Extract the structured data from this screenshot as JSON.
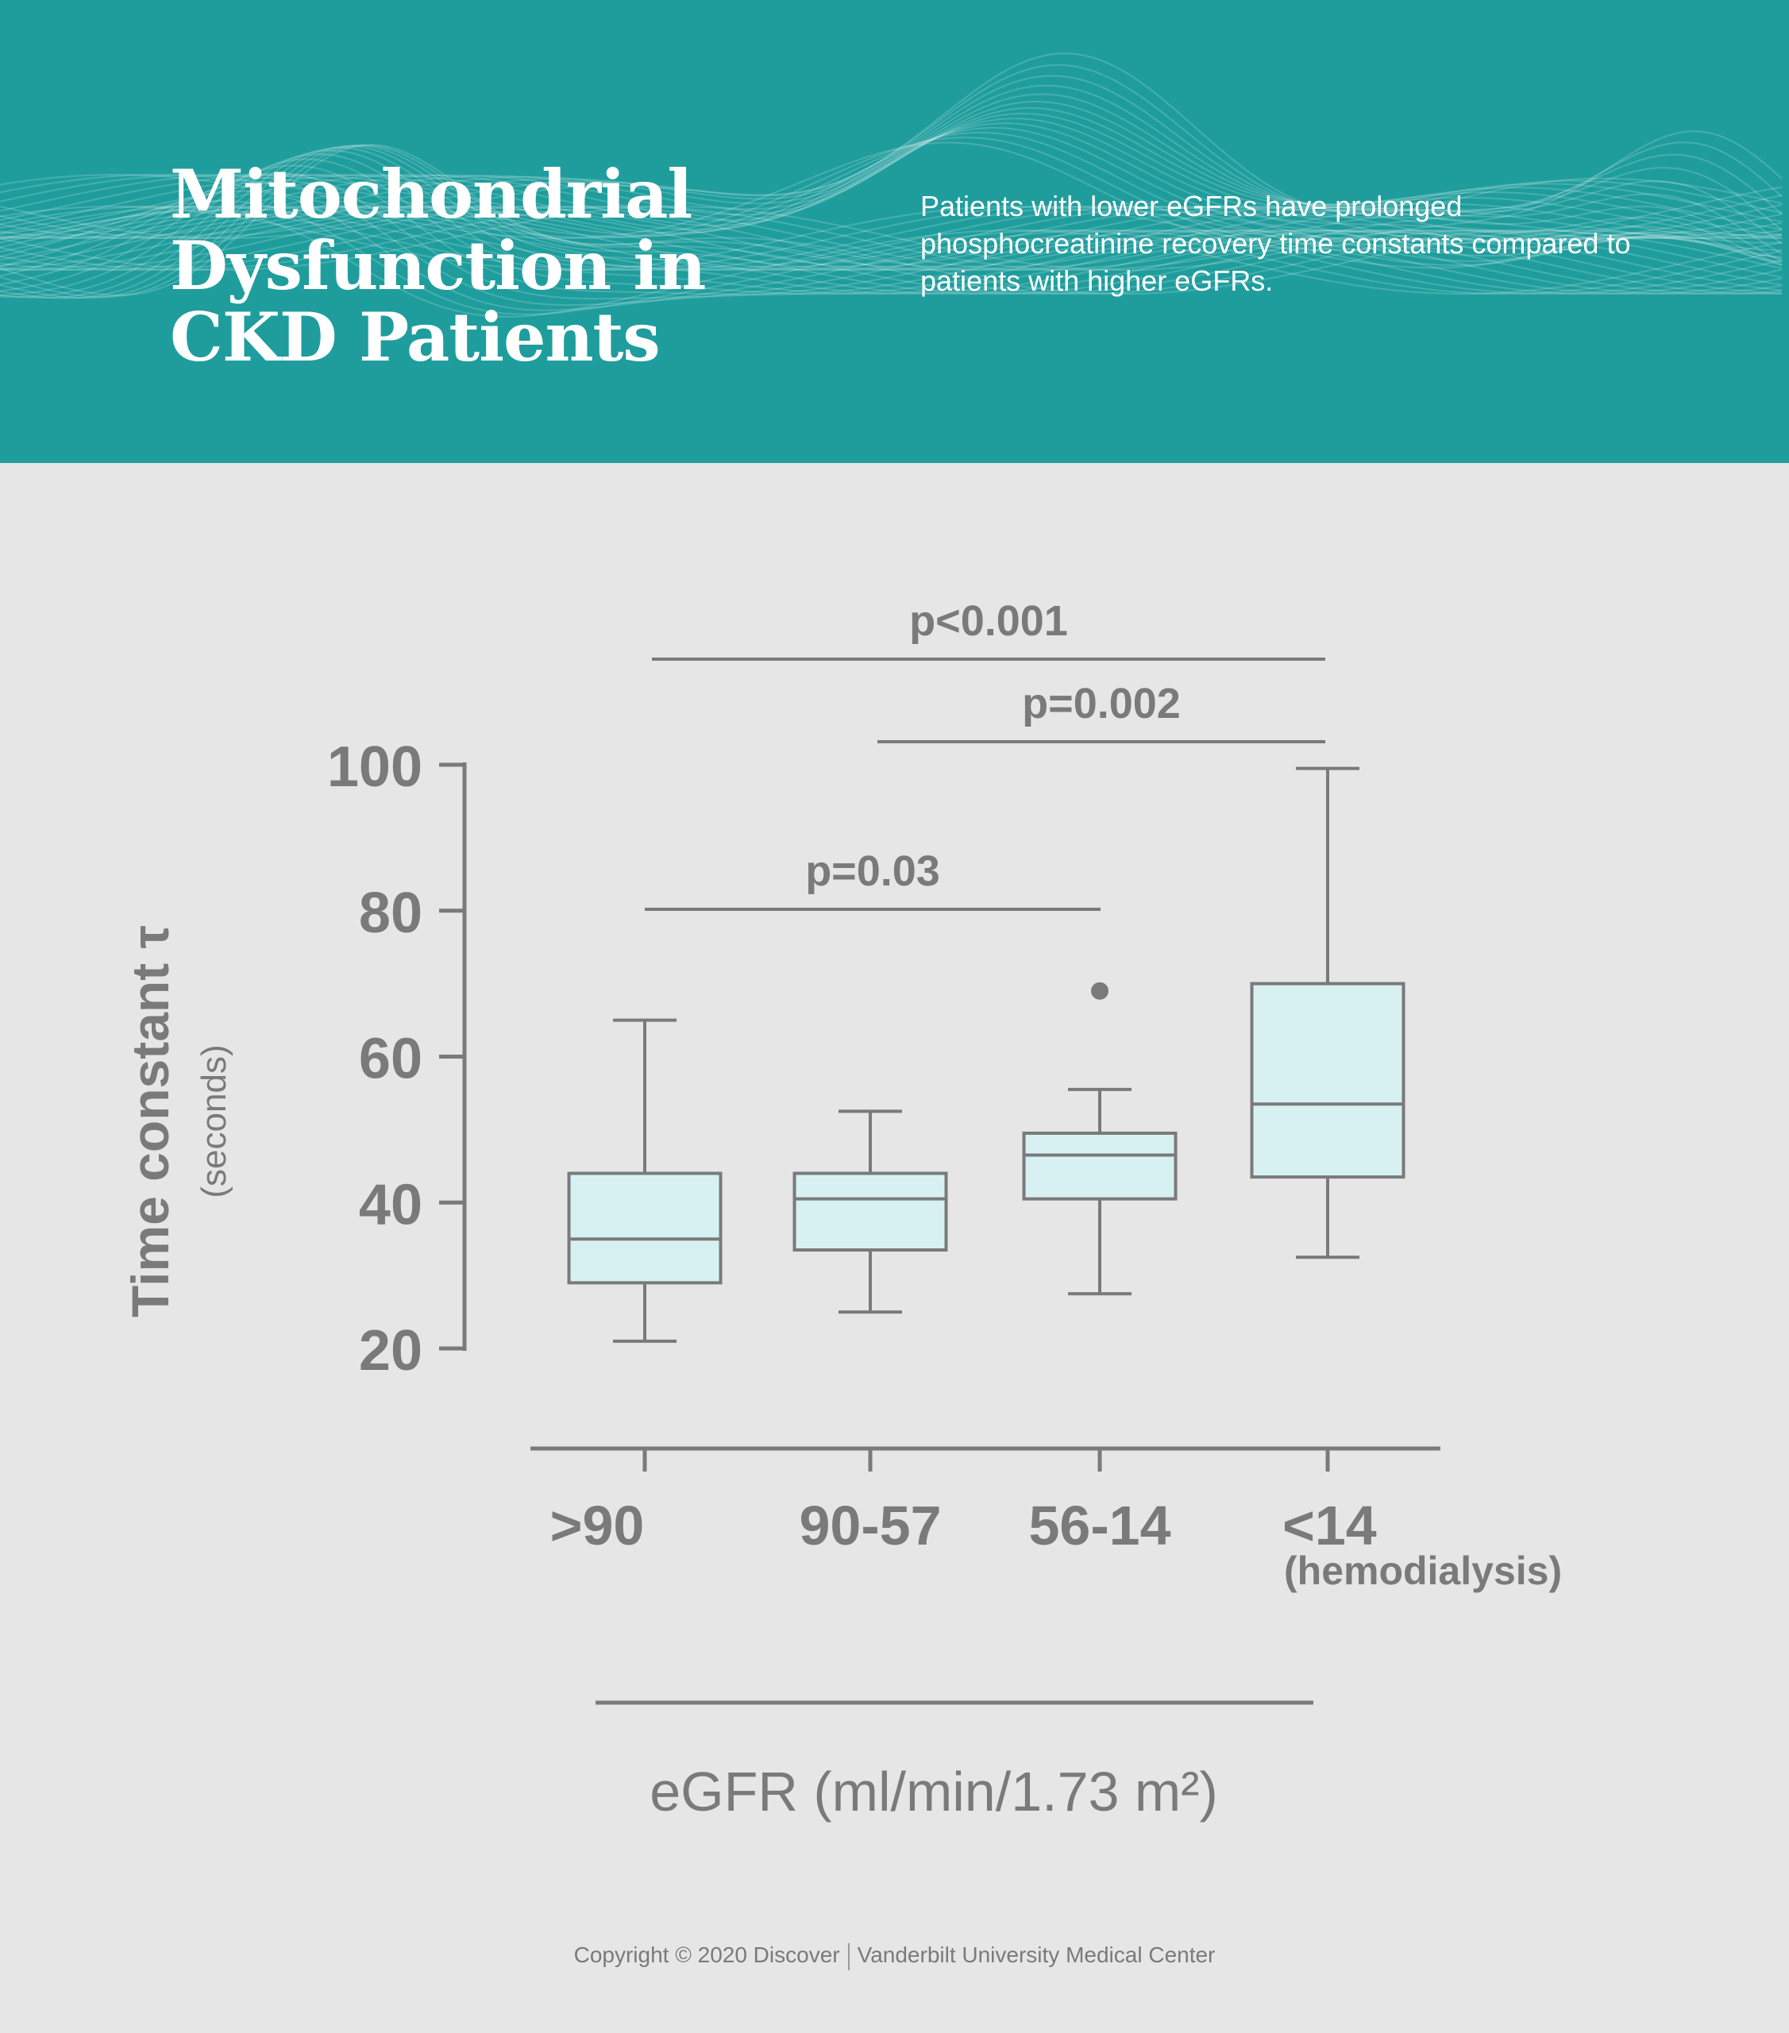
{
  "header": {
    "title_lines": [
      "Mitochondrial",
      "Dysfunction in",
      "CKD Patients"
    ],
    "description": "Patients with lower eGFRs have prolonged phosphocreatinine recovery time constants compared to patients with higher eGFRs.",
    "background_color": "#1f9d9d"
  },
  "chart_data": {
    "type": "boxplot",
    "categories": [
      ">90",
      "90-57",
      "56-14",
      "<14"
    ],
    "category_sublabels": [
      "",
      "",
      "",
      "(hemodialysis)"
    ],
    "xlabel": "eGFR (ml/min/1.73 m²)",
    "ylabel": "Time constant τ",
    "ylabel_sub": "(seconds)",
    "ylim": [
      20,
      100
    ],
    "yticks": [
      20,
      40,
      60,
      80,
      100
    ],
    "grid": false,
    "boxes": [
      {
        "min": 21,
        "q1": 29,
        "median": 35,
        "q3": 44,
        "max": 65,
        "outliers": []
      },
      {
        "min": 25,
        "q1": 33.5,
        "median": 40.5,
        "q3": 44,
        "max": 52.5,
        "outliers": []
      },
      {
        "min": 27.5,
        "q1": 40.5,
        "median": 46.5,
        "q3": 49.5,
        "max": 55.5,
        "outliers": [
          69
        ]
      },
      {
        "min": 32.5,
        "q1": 43.5,
        "median": 53.5,
        "q3": 70,
        "max": 99.5,
        "outliers": []
      }
    ],
    "significance": [
      {
        "from": 0,
        "to": 3,
        "label": "p<0.001"
      },
      {
        "from": 1,
        "to": 3,
        "label": "p=0.002"
      },
      {
        "from": 0,
        "to": 2,
        "label": "p=0.03"
      }
    ],
    "colors": {
      "box_fill": "#d7f1f3",
      "stroke": "#7a7a7a",
      "background": "#e6e6e6"
    }
  },
  "footer": {
    "left": "Copyright © 2020 Discover",
    "right": "Vanderbilt University Medical Center"
  }
}
